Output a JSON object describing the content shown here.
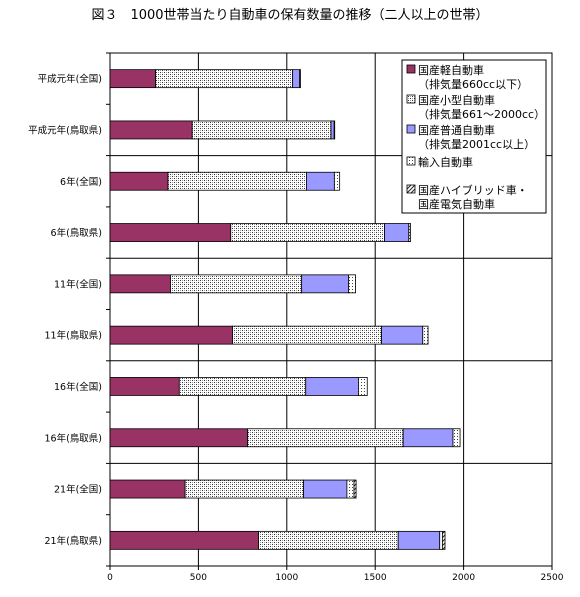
{
  "title": "図３　1000世帯当たり自動車の保有数量の推移（二人以上の世帯）",
  "chart_data": {
    "type": "bar",
    "orientation": "horizontal",
    "stacked": true,
    "categories": [
      "平成元年(全国)",
      "平成元年(鳥取県)",
      "6年(全国)",
      "6年(鳥取県)",
      "11年(全国)",
      "11年(鳥取県)",
      "16年(全国)",
      "16年(鳥取県)",
      "21年(全国)",
      "21年(鳥取県)"
    ],
    "series": [
      {
        "name": "国産軽自動車\n（排気量660cc以下）",
        "color": "#993366",
        "pattern": "solid",
        "values": [
          258,
          465,
          328,
          683,
          342,
          693,
          392,
          778,
          425,
          840
        ]
      },
      {
        "name": "国産小型自動車\n（排気量661～2000cc）",
        "color": "#ffffff",
        "pattern": "checker",
        "values": [
          775,
          785,
          783,
          870,
          742,
          843,
          715,
          880,
          670,
          790
        ]
      },
      {
        "name": "国産普通自動車\n（排気量2001cc以上）",
        "color": "#9999ff",
        "pattern": "solid",
        "values": [
          40,
          18,
          158,
          137,
          265,
          233,
          298,
          282,
          245,
          235
        ]
      },
      {
        "name": "輸入自動車",
        "color": "#ffffff",
        "pattern": "dots",
        "values": [
          5,
          3,
          30,
          10,
          40,
          30,
          50,
          40,
          40,
          15
        ]
      },
      {
        "name": "国産ハイブリッド車・\n国産電気自動車",
        "color": "#ffffff",
        "pattern": "diag",
        "values": [
          0,
          0,
          0,
          0,
          0,
          0,
          0,
          0,
          12,
          15
        ]
      }
    ],
    "xlim": [
      0,
      2500
    ],
    "xticks": [
      0,
      500,
      1000,
      1500,
      2000,
      2500
    ],
    "grid": true,
    "legend_position": "top-right"
  }
}
